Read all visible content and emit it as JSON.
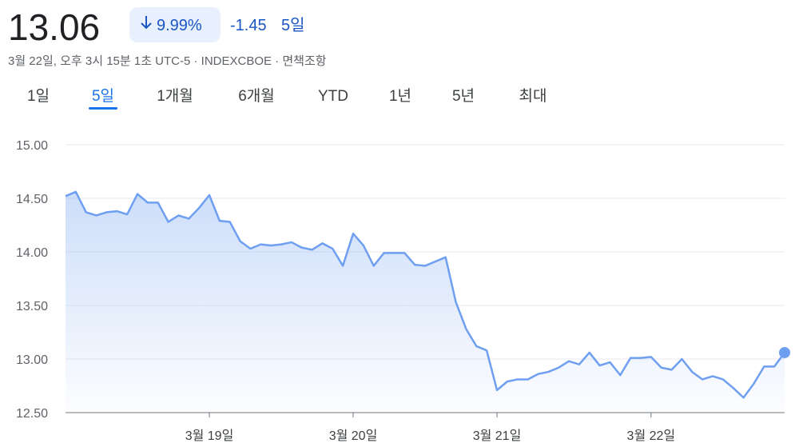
{
  "header": {
    "price": "13.06",
    "change_percent": "9.99%",
    "change": "-1.45",
    "period": "5일",
    "subtitle": "3월 22일, 오후 3시 15분 1초 UTC-5 · INDEXCBOE · 면책조항"
  },
  "tabs": {
    "items": [
      "1일",
      "5일",
      "1개월",
      "6개월",
      "YTD",
      "1년",
      "5년",
      "최대"
    ],
    "selected": 1
  },
  "chart_data": {
    "type": "line",
    "color": "#6f9ff0",
    "grid": true,
    "ylim": [
      12.5,
      15.0
    ],
    "yticks": [
      {
        "value": 12.5,
        "label": "12.50"
      },
      {
        "value": 13,
        "label": "13.00"
      },
      {
        "value": 13.5,
        "label": "13.50"
      },
      {
        "value": 14,
        "label": "14.00"
      },
      {
        "value": 14.5,
        "label": "14.50"
      },
      {
        "value": 15,
        "label": "15.00"
      }
    ],
    "categories": [
      null,
      null,
      null,
      null,
      null,
      null,
      null,
      null,
      null,
      null,
      null,
      null,
      null,
      null,
      "3월 19일",
      null,
      null,
      null,
      null,
      null,
      null,
      null,
      null,
      null,
      null,
      null,
      null,
      null,
      "3월 20일",
      null,
      null,
      null,
      null,
      null,
      null,
      null,
      null,
      null,
      null,
      null,
      null,
      null,
      "3월 21일",
      null,
      null,
      null,
      null,
      null,
      null,
      null,
      null,
      null,
      null,
      null,
      null,
      null,
      null,
      "3월 22일",
      null,
      null,
      null,
      null,
      null,
      null,
      null,
      null,
      null,
      null,
      null,
      null,
      null
    ],
    "values": [
      14.52,
      14.56,
      14.37,
      14.34,
      14.37,
      14.38,
      14.35,
      14.54,
      14.46,
      14.46,
      14.28,
      14.34,
      14.31,
      14.41,
      14.53,
      14.29,
      14.28,
      14.1,
      14.03,
      14.07,
      14.06,
      14.07,
      14.09,
      14.04,
      14.02,
      14.08,
      14.03,
      13.87,
      14.17,
      14.06,
      13.87,
      13.99,
      13.99,
      13.99,
      13.88,
      13.87,
      13.91,
      13.95,
      13.53,
      13.28,
      13.12,
      13.08,
      12.71,
      12.79,
      12.81,
      12.81,
      12.86,
      12.88,
      12.92,
      12.98,
      12.95,
      13.06,
      12.94,
      12.97,
      12.85,
      13.01,
      13.01,
      13.02,
      12.92,
      12.9,
      13.0,
      12.88,
      12.81,
      12.84,
      12.81,
      12.73,
      12.64,
      12.77,
      12.93,
      12.93,
      13.06
    ]
  }
}
